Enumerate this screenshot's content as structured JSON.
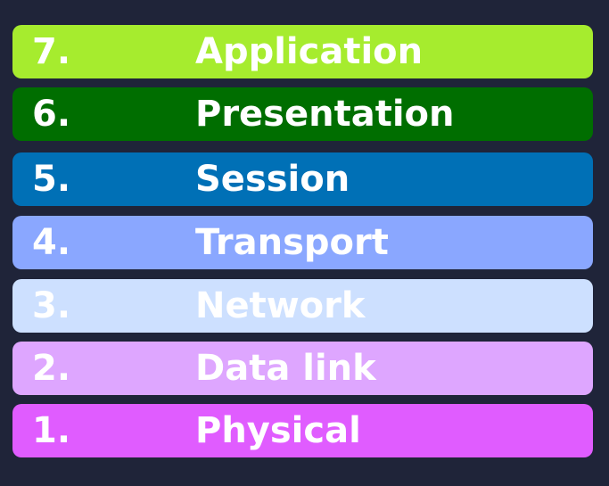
{
  "layers": [
    {
      "number": "7.",
      "name": "Application",
      "color": "#a6ec2e"
    },
    {
      "number": "6.",
      "name": "Presentation",
      "color": "#006e00"
    },
    {
      "number": "5.",
      "name": "Session",
      "color": "#0070b6"
    },
    {
      "number": "4.",
      "name": "Transport",
      "color": "#8aa7ff"
    },
    {
      "number": "3.",
      "name": "Network",
      "color": "#cde0ff"
    },
    {
      "number": "2.",
      "name": "Data link",
      "color": "#dea6ff"
    },
    {
      "number": "1.",
      "name": "Physical",
      "color": "#e05cff"
    }
  ]
}
